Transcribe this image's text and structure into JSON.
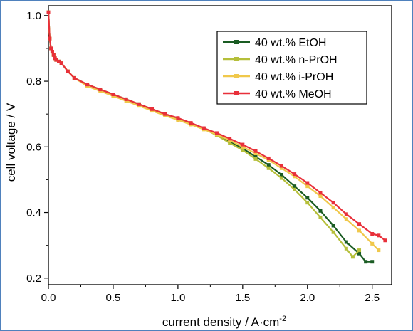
{
  "chart_data": {
    "type": "line",
    "xlabel": "current density / A·cm",
    "xlabel_superscript": "-2",
    "ylabel": "cell voltage / V",
    "xlim": [
      0.0,
      2.65
    ],
    "ylim": [
      0.18,
      1.03
    ],
    "x_ticks": [
      0.0,
      0.5,
      1.0,
      1.5,
      2.0,
      2.5
    ],
    "x_tick_labels": [
      "0.0",
      "0.5",
      "1.0",
      "1.5",
      "2.0",
      "2.5"
    ],
    "y_ticks": [
      0.2,
      0.4,
      0.6,
      0.8,
      1.0
    ],
    "y_tick_labels": [
      "0.2",
      "0.4",
      "0.6",
      "0.8",
      "1.0"
    ],
    "legend_position": "top-right",
    "series": [
      {
        "name": "40 wt.% EtOH",
        "color": "#1a5c23",
        "points": [
          [
            0,
            1.01
          ],
          [
            0.01,
            0.93
          ],
          [
            0.02,
            0.9
          ],
          [
            0.03,
            0.89
          ],
          [
            0.04,
            0.88
          ],
          [
            0.05,
            0.87
          ],
          [
            0.06,
            0.865
          ],
          [
            0.08,
            0.86
          ],
          [
            0.1,
            0.855
          ],
          [
            0.15,
            0.83
          ],
          [
            0.2,
            0.81
          ],
          [
            0.3,
            0.79
          ],
          [
            0.4,
            0.775
          ],
          [
            0.5,
            0.76
          ],
          [
            0.6,
            0.745
          ],
          [
            0.7,
            0.73
          ],
          [
            0.8,
            0.715
          ],
          [
            0.9,
            0.7
          ],
          [
            1.0,
            0.685
          ],
          [
            1.1,
            0.67
          ],
          [
            1.2,
            0.655
          ],
          [
            1.3,
            0.637
          ],
          [
            1.4,
            0.617
          ],
          [
            1.5,
            0.595
          ],
          [
            1.6,
            0.57
          ],
          [
            1.7,
            0.545
          ],
          [
            1.8,
            0.515
          ],
          [
            1.9,
            0.48
          ],
          [
            2.0,
            0.445
          ],
          [
            2.1,
            0.405
          ],
          [
            2.2,
            0.36
          ],
          [
            2.3,
            0.31
          ],
          [
            2.4,
            0.275
          ],
          [
            2.45,
            0.25
          ],
          [
            2.5,
            0.25
          ]
        ]
      },
      {
        "name": "40 wt.% n-PrOH",
        "color": "#b5bf3a",
        "points": [
          [
            0,
            1.01
          ],
          [
            0.01,
            0.93
          ],
          [
            0.02,
            0.9
          ],
          [
            0.03,
            0.89
          ],
          [
            0.04,
            0.88
          ],
          [
            0.05,
            0.87
          ],
          [
            0.06,
            0.865
          ],
          [
            0.08,
            0.86
          ],
          [
            0.1,
            0.855
          ],
          [
            0.15,
            0.83
          ],
          [
            0.2,
            0.81
          ],
          [
            0.3,
            0.79
          ],
          [
            0.4,
            0.775
          ],
          [
            0.5,
            0.76
          ],
          [
            0.6,
            0.745
          ],
          [
            0.7,
            0.73
          ],
          [
            0.8,
            0.715
          ],
          [
            0.9,
            0.7
          ],
          [
            1.0,
            0.685
          ],
          [
            1.1,
            0.67
          ],
          [
            1.2,
            0.655
          ],
          [
            1.3,
            0.635
          ],
          [
            1.4,
            0.612
          ],
          [
            1.5,
            0.59
          ],
          [
            1.6,
            0.563
          ],
          [
            1.7,
            0.535
          ],
          [
            1.8,
            0.505
          ],
          [
            1.9,
            0.47
          ],
          [
            2.0,
            0.43
          ],
          [
            2.1,
            0.385
          ],
          [
            2.2,
            0.34
          ],
          [
            2.3,
            0.29
          ],
          [
            2.35,
            0.265
          ],
          [
            2.4,
            0.285
          ]
        ]
      },
      {
        "name": "40 wt.% i-PrOH",
        "color": "#f0c84b",
        "points": [
          [
            0,
            1.01
          ],
          [
            0.01,
            0.93
          ],
          [
            0.02,
            0.9
          ],
          [
            0.03,
            0.89
          ],
          [
            0.04,
            0.88
          ],
          [
            0.05,
            0.87
          ],
          [
            0.06,
            0.865
          ],
          [
            0.08,
            0.86
          ],
          [
            0.1,
            0.855
          ],
          [
            0.15,
            0.83
          ],
          [
            0.2,
            0.81
          ],
          [
            0.3,
            0.785
          ],
          [
            0.4,
            0.77
          ],
          [
            0.5,
            0.755
          ],
          [
            0.6,
            0.74
          ],
          [
            0.7,
            0.725
          ],
          [
            0.8,
            0.71
          ],
          [
            0.9,
            0.695
          ],
          [
            1.0,
            0.682
          ],
          [
            1.1,
            0.668
          ],
          [
            1.2,
            0.653
          ],
          [
            1.3,
            0.638
          ],
          [
            1.4,
            0.62
          ],
          [
            1.5,
            0.6
          ],
          [
            1.6,
            0.58
          ],
          [
            1.7,
            0.56
          ],
          [
            1.8,
            0.535
          ],
          [
            1.9,
            0.51
          ],
          [
            2.0,
            0.48
          ],
          [
            2.1,
            0.45
          ],
          [
            2.2,
            0.415
          ],
          [
            2.3,
            0.38
          ],
          [
            2.4,
            0.345
          ],
          [
            2.5,
            0.305
          ],
          [
            2.55,
            0.285
          ]
        ]
      },
      {
        "name": "40 wt.% MeOH",
        "color": "#e8303a",
        "points": [
          [
            0,
            1.01
          ],
          [
            0.01,
            0.93
          ],
          [
            0.02,
            0.9
          ],
          [
            0.03,
            0.89
          ],
          [
            0.04,
            0.88
          ],
          [
            0.05,
            0.87
          ],
          [
            0.06,
            0.865
          ],
          [
            0.08,
            0.86
          ],
          [
            0.1,
            0.855
          ],
          [
            0.15,
            0.83
          ],
          [
            0.2,
            0.81
          ],
          [
            0.3,
            0.79
          ],
          [
            0.4,
            0.775
          ],
          [
            0.5,
            0.76
          ],
          [
            0.6,
            0.745
          ],
          [
            0.7,
            0.73
          ],
          [
            0.8,
            0.715
          ],
          [
            0.9,
            0.7
          ],
          [
            1.0,
            0.688
          ],
          [
            1.1,
            0.673
          ],
          [
            1.2,
            0.657
          ],
          [
            1.3,
            0.642
          ],
          [
            1.4,
            0.625
          ],
          [
            1.5,
            0.607
          ],
          [
            1.6,
            0.587
          ],
          [
            1.7,
            0.565
          ],
          [
            1.8,
            0.542
          ],
          [
            1.9,
            0.517
          ],
          [
            2.0,
            0.49
          ],
          [
            2.1,
            0.46
          ],
          [
            2.2,
            0.43
          ],
          [
            2.3,
            0.395
          ],
          [
            2.4,
            0.365
          ],
          [
            2.5,
            0.335
          ],
          [
            2.55,
            0.33
          ],
          [
            2.6,
            0.315
          ]
        ]
      }
    ]
  }
}
